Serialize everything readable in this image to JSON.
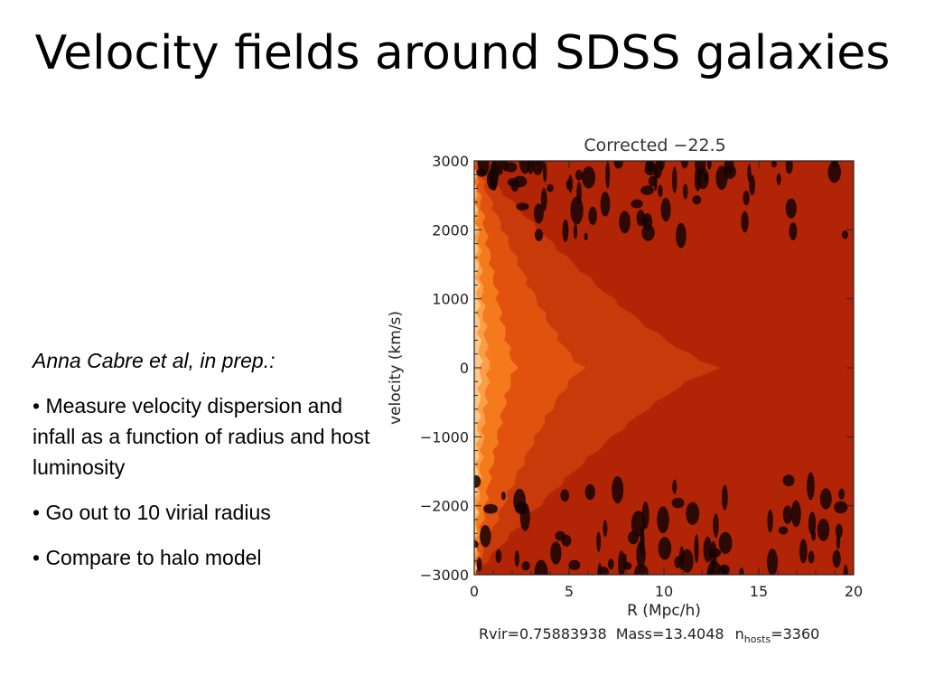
{
  "slide": {
    "title": "Velocity fields around SDSS galaxies"
  },
  "body": {
    "citation": "Anna Cabre et al, in prep.:",
    "bullets": [
      "• Measure velocity dispersion and infall as a function of radius and host luminosity",
      "• Go out to 10 virial radius",
      "• Compare to halo model"
    ]
  },
  "chart_data": {
    "type": "heatmap",
    "title": "Corrected  −22.5",
    "xlabel": "R  (Mpc/h)",
    "ylabel": "velocity  (km/s)",
    "xlim": [
      0,
      20
    ],
    "ylim": [
      -3000,
      3000
    ],
    "x_ticks": [
      0,
      5,
      10,
      15,
      20
    ],
    "y_ticks": [
      3000,
      2000,
      1000,
      0,
      -1000,
      -2000,
      -3000
    ],
    "y_tick_labels": [
      "3000",
      "2000",
      "1000",
      "0",
      "−1000",
      "−2000",
      "−3000"
    ],
    "footer": {
      "rvir": "Rvir=0.75883938",
      "mass": "Mass=13.4048",
      "nhosts_prefix": "n",
      "nhosts_sub": "hosts",
      "nhosts_value": "=3360"
    },
    "contour_levels": [
      {
        "level": "background",
        "color": "#b22406"
      },
      {
        "level": "1",
        "color": "#c83a0a"
      },
      {
        "level": "2",
        "color": "#e0520e"
      },
      {
        "level": "3",
        "color": "#f47a1c"
      },
      {
        "level": "4",
        "color": "#fc9e45"
      },
      {
        "level": "5",
        "color": "#ffc889"
      }
    ],
    "contour_extents_R": [
      {
        "color": "#c83a0a",
        "r_at_zero_velocity": 13.0
      },
      {
        "color": "#e0520e",
        "r_at_zero_velocity": 5.8
      },
      {
        "color": "#f47a1c",
        "r_at_zero_velocity": 2.2
      },
      {
        "color": "#fc9e45",
        "r_at_zero_velocity": 0.8
      },
      {
        "color": "#ffc889",
        "r_at_zero_velocity": 0.35
      }
    ],
    "grid": false
  }
}
